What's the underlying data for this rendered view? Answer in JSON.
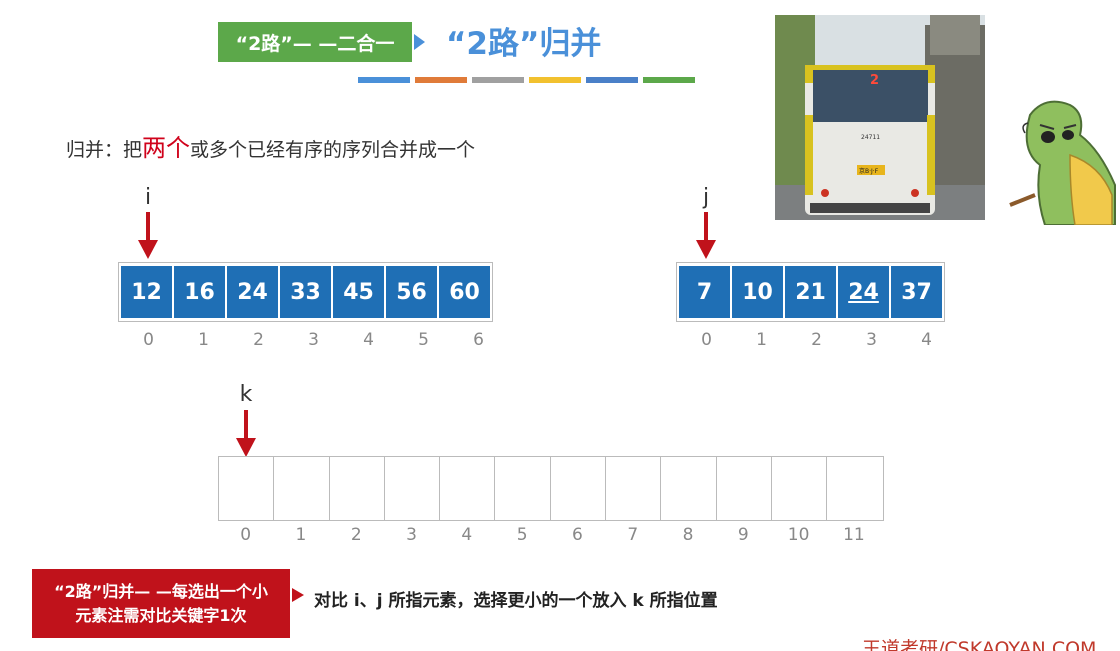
{
  "header": {
    "tag": "“2路”— —二合一",
    "title": "“2路”归并",
    "bar_colors": [
      "#4a90d9",
      "#e07b39",
      "#a0a0a0",
      "#f2c12e",
      "#4a80c8",
      "#5ca84a"
    ]
  },
  "definition": {
    "prefix": "归并：把",
    "emphasis": "两个",
    "suffix": "或多个已经有序的序列合并成一个"
  },
  "photo": {
    "route_number": "2",
    "bus_id": "24711",
    "plate": "京B·J·F"
  },
  "array_i": {
    "pointer": "i",
    "pointer_index": 0,
    "values": [
      "12",
      "16",
      "24",
      "33",
      "45",
      "56",
      "60"
    ],
    "indices": [
      "0",
      "1",
      "2",
      "3",
      "4",
      "5",
      "6"
    ]
  },
  "array_j": {
    "pointer": "j",
    "pointer_index": 0,
    "values": [
      "7",
      "10",
      "21",
      "24",
      "37"
    ],
    "indices": [
      "0",
      "1",
      "2",
      "3",
      "4"
    ],
    "underlined_index": 3
  },
  "array_k": {
    "pointer": "k",
    "pointer_index": 0,
    "indices": [
      "0",
      "1",
      "2",
      "3",
      "4",
      "5",
      "6",
      "7",
      "8",
      "9",
      "10",
      "11"
    ]
  },
  "note": {
    "line1": "“2路”归并— —每选出一个小",
    "line2": "元素注需对比关键字1次",
    "explanation": "对比 i、j 所指元素，选择更小的一个放入 k 所指位置"
  },
  "watermark": "王道考研/CSKAOYAN.COM",
  "colors": {
    "cell": "#1f6fb5",
    "pointer_arrow": "#c0121b",
    "accent_green": "#5ca84a",
    "title_blue": "#4a90d9"
  }
}
